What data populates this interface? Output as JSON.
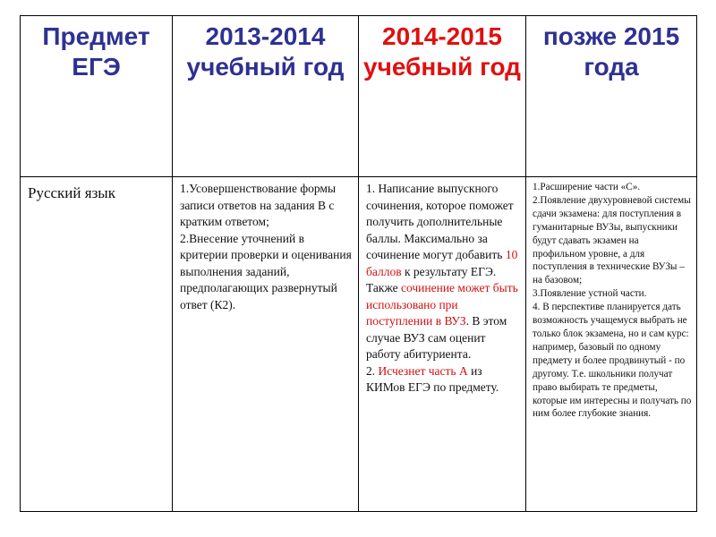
{
  "headers": {
    "subject": "Предмет ЕГЭ",
    "y2013": "2013-2014 учебный год",
    "y2014": "2014-2015 учебный год",
    "after2015": "позже 2015 года"
  },
  "colors": {
    "header_blue": "#2e3192",
    "highlight_red": "#e01010"
  },
  "row": {
    "subject": "Русский язык",
    "c2013": [
      "1.Усовершенствование формы записи ответов на задания В с кратким ответом;",
      "2.Внесение уточнений в критерии проверки и оценивания выполнения заданий, предполагающих развернутый ответ (К2)."
    ],
    "c2014": {
      "p1a": "1. Написание выпускного сочинения, которое поможет получить дополнительные баллы. Максимально за сочинение могут добавить ",
      "p1b": "10 баллов",
      "p1c": " к результату ЕГЭ. Также ",
      "p1d": "сочинение может быть использовано при поступлении в ВУЗ",
      "p1e": ". В этом случае ВУЗ сам оценит работу абитуриента.",
      "p2a": "2. ",
      "p2b": "Исчезнет часть А",
      "p2c": " из КИМов ЕГЭ по предмету."
    },
    "c2015": [
      "1.Расширение части «С».",
      "2.Появление двухуровневой системы сдачи экзамена: для поступления в гуманитарные ВУЗы, выпускники будут сдавать экзамен на профильном уровне, а для поступления в технические ВУЗы – на базовом;",
      "3.Появление устной части.",
      "4. В перспективе планируется дать возможность учащемуся выбрать не только блок экзамена, но и сам курс: например, базовый по одному предмету и более продвинутый - по другому. Т.е. школьники получат право выбирать те предметы, которые им интересны и получать по ним более глубокие знания."
    ]
  }
}
